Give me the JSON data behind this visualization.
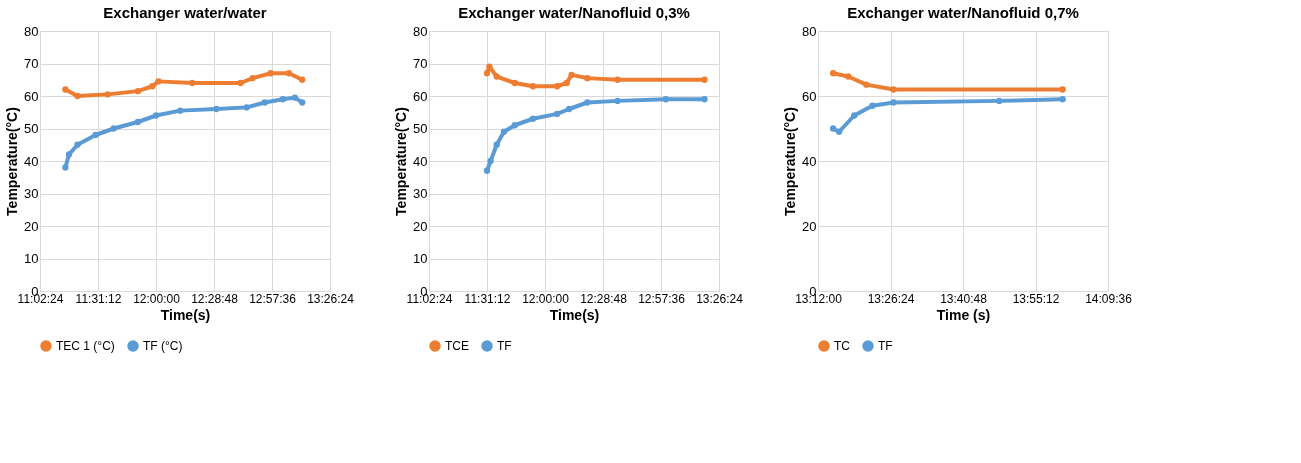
{
  "chart_data": [
    {
      "type": "line",
      "title": "Exchanger water/water",
      "xlabel": "Time(s)",
      "ylabel": "Temperature(°C)",
      "xlim": [
        11.04,
        13.44
      ],
      "xticks": [
        {
          "value": 11.04,
          "label": "11:02:24"
        },
        {
          "value": 11.52,
          "label": "11:31:12"
        },
        {
          "value": 12.0,
          "label": "12:00:00"
        },
        {
          "value": 12.48,
          "label": "12:28:48"
        },
        {
          "value": 12.96,
          "label": "12:57:36"
        },
        {
          "value": 13.44,
          "label": "13:26:24"
        }
      ],
      "ylim": [
        0,
        80
      ],
      "yticks": [
        0,
        10,
        20,
        30,
        40,
        50,
        60,
        70,
        80
      ],
      "grid": true,
      "legend": "bottom",
      "marker": "circle",
      "line_style": "solid",
      "series": [
        {
          "name": "TEC 1 (°C)",
          "color": "#ed7d31",
          "x": [
            11.25,
            11.35,
            11.6,
            11.85,
            11.97,
            12.02,
            12.3,
            12.7,
            12.8,
            12.95,
            13.1,
            13.21
          ],
          "values": [
            62,
            60,
            60.5,
            61.5,
            63,
            64.5,
            64,
            64,
            65.5,
            67,
            67,
            65
          ]
        },
        {
          "name": "TF (°C)",
          "color": "#5b9bd5",
          "x": [
            11.25,
            11.28,
            11.35,
            11.5,
            11.65,
            11.85,
            12.0,
            12.2,
            12.5,
            12.75,
            12.9,
            13.05,
            13.15,
            13.21
          ],
          "values": [
            38,
            42,
            45,
            48,
            50,
            52,
            54,
            55.5,
            56,
            56.5,
            58,
            59,
            59.5,
            58
          ]
        }
      ]
    },
    {
      "type": "line",
      "title": "Exchanger water/Nanofluid 0,3%",
      "xlabel": "Time(s)",
      "ylabel": "Temperature(°C)",
      "xlim": [
        11.04,
        13.44
      ],
      "xticks": [
        {
          "value": 11.04,
          "label": "11:02:24"
        },
        {
          "value": 11.52,
          "label": "11:31:12"
        },
        {
          "value": 12.0,
          "label": "12:00:00"
        },
        {
          "value": 12.48,
          "label": "12:28:48"
        },
        {
          "value": 12.96,
          "label": "12:57:36"
        },
        {
          "value": 13.44,
          "label": "13:26:24"
        }
      ],
      "ylim": [
        0,
        80
      ],
      "yticks": [
        0,
        10,
        20,
        30,
        40,
        50,
        60,
        70,
        80
      ],
      "grid": true,
      "legend": "bottom",
      "marker": "circle",
      "line_style": "solid",
      "series": [
        {
          "name": "TCE",
          "color": "#ed7d31",
          "x": [
            11.52,
            11.54,
            11.6,
            11.75,
            11.9,
            12.1,
            12.18,
            12.22,
            12.35,
            12.6,
            13.32
          ],
          "values": [
            67,
            69,
            66,
            64,
            63,
            63,
            64,
            66.5,
            65.5,
            65,
            65
          ]
        },
        {
          "name": "TF",
          "color": "#5b9bd5",
          "x": [
            11.52,
            11.55,
            11.6,
            11.66,
            11.75,
            11.9,
            12.1,
            12.2,
            12.35,
            12.6,
            13.0,
            13.32
          ],
          "values": [
            37,
            40,
            45,
            49,
            51,
            53,
            54.5,
            56,
            58,
            58.5,
            59,
            59
          ]
        }
      ]
    },
    {
      "type": "line",
      "title": "Exchanger water/Nanofluid 0,7%",
      "xlabel": "Time (s)",
      "ylabel": "Temperature(°C)",
      "xlim": [
        13.2,
        14.16
      ],
      "xticks": [
        {
          "value": 13.2,
          "label": "13:12:00"
        },
        {
          "value": 13.44,
          "label": "13:26:24"
        },
        {
          "value": 13.68,
          "label": "13:40:48"
        },
        {
          "value": 13.92,
          "label": "13:55:12"
        },
        {
          "value": 14.16,
          "label": "14:09:36"
        }
      ],
      "ylim": [
        0,
        80
      ],
      "yticks": [
        0,
        20,
        40,
        60,
        80
      ],
      "grid": true,
      "legend": "bottom",
      "marker": "circle",
      "line_style": "solid",
      "series": [
        {
          "name": "TC",
          "color": "#ed7d31",
          "x": [
            13.25,
            13.3,
            13.36,
            13.45,
            14.01
          ],
          "values": [
            67,
            66,
            63.5,
            62,
            62
          ]
        },
        {
          "name": "TF",
          "color": "#5b9bd5",
          "x": [
            13.25,
            13.27,
            13.32,
            13.38,
            13.45,
            13.8,
            14.01
          ],
          "values": [
            50,
            49,
            54,
            57,
            58,
            58.5,
            59
          ]
        }
      ]
    }
  ]
}
